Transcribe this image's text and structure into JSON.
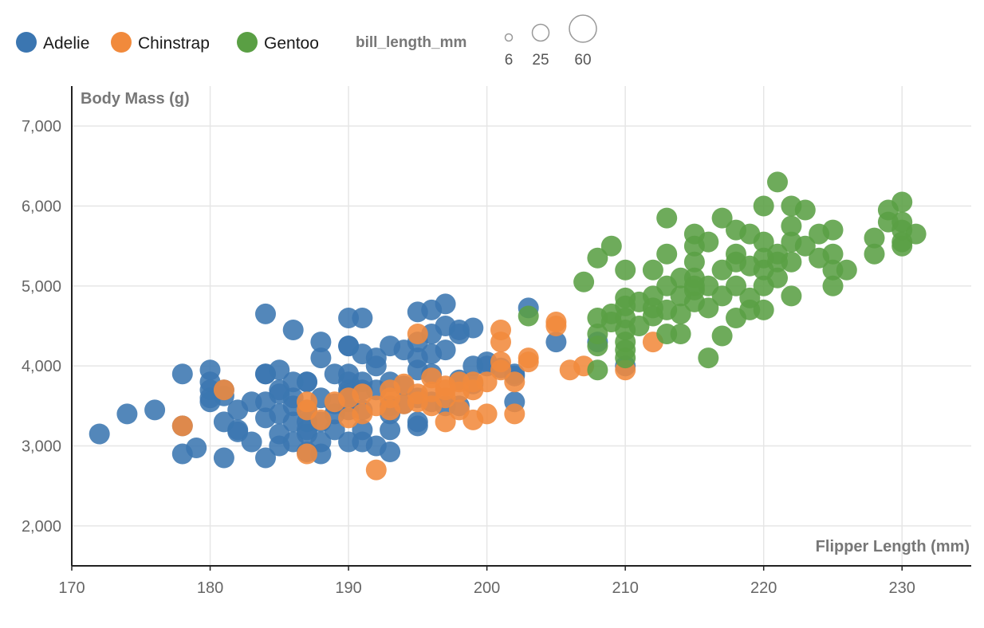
{
  "chart_data": {
    "type": "scatter",
    "title": "",
    "xlabel": "Flipper Length (mm)",
    "ylabel": "Body Mass (g)",
    "xlim": [
      170,
      235
    ],
    "ylim": [
      1500,
      7500
    ],
    "x_ticks": [
      170,
      180,
      190,
      200,
      210,
      220,
      230
    ],
    "x_tick_labels": [
      "170",
      "180",
      "190",
      "200",
      "210",
      "220",
      "230"
    ],
    "y_ticks": [
      2000,
      3000,
      4000,
      5000,
      6000,
      7000
    ],
    "y_tick_labels": [
      "2,000",
      "3,000",
      "4,000",
      "5,000",
      "6,000",
      "7,000"
    ],
    "grid": true,
    "legend_position": "top-left",
    "size_legend": {
      "title": "bill_length_mm",
      "values": [
        6,
        25,
        60
      ],
      "labels": [
        "6",
        "25",
        "60"
      ]
    },
    "series": [
      {
        "name": "Adelie",
        "color": "#3b76b1",
        "points": [
          [
            172,
            3150
          ],
          [
            174,
            3400
          ],
          [
            176,
            3450
          ],
          [
            178,
            3900
          ],
          [
            178,
            3250
          ],
          [
            178,
            2900
          ],
          [
            179,
            2975
          ],
          [
            180,
            3950
          ],
          [
            180,
            3800
          ],
          [
            180,
            3700
          ],
          [
            180,
            3550
          ],
          [
            180,
            3600
          ],
          [
            181,
            3700
          ],
          [
            181,
            3300
          ],
          [
            181,
            2850
          ],
          [
            181,
            3625
          ],
          [
            182,
            3175
          ],
          [
            182,
            3450
          ],
          [
            182,
            3200
          ],
          [
            183,
            3050
          ],
          [
            183,
            3550
          ],
          [
            184,
            4650
          ],
          [
            184,
            3900
          ],
          [
            184,
            3550
          ],
          [
            184,
            3350
          ],
          [
            184,
            2850
          ],
          [
            184,
            3900
          ],
          [
            185,
            3950
          ],
          [
            185,
            3700
          ],
          [
            185,
            3400
          ],
          [
            185,
            3000
          ],
          [
            185,
            3150
          ],
          [
            185,
            3650
          ],
          [
            186,
            4450
          ],
          [
            186,
            3800
          ],
          [
            186,
            3500
          ],
          [
            186,
            3050
          ],
          [
            186,
            3300
          ],
          [
            186,
            3600
          ],
          [
            187,
            3800
          ],
          [
            187,
            3450
          ],
          [
            187,
            3150
          ],
          [
            187,
            2925
          ],
          [
            187,
            3300
          ],
          [
            187,
            3800
          ],
          [
            187,
            3200
          ],
          [
            188,
            4300
          ],
          [
            188,
            4100
          ],
          [
            188,
            3600
          ],
          [
            188,
            2900
          ],
          [
            188,
            3050
          ],
          [
            188,
            3300
          ],
          [
            189,
            3900
          ],
          [
            189,
            3525
          ],
          [
            189,
            3200
          ],
          [
            189,
            3400
          ],
          [
            190,
            4600
          ],
          [
            190,
            4250
          ],
          [
            190,
            3900
          ],
          [
            190,
            3700
          ],
          [
            190,
            3450
          ],
          [
            190,
            3050
          ],
          [
            190,
            3800
          ],
          [
            190,
            3650
          ],
          [
            190,
            4250
          ],
          [
            190,
            3550
          ],
          [
            191,
            4600
          ],
          [
            191,
            4150
          ],
          [
            191,
            3700
          ],
          [
            191,
            3450
          ],
          [
            191,
            3200
          ],
          [
            191,
            3050
          ],
          [
            191,
            3800
          ],
          [
            192,
            4000
          ],
          [
            192,
            3700
          ],
          [
            192,
            3000
          ],
          [
            192,
            4100
          ],
          [
            193,
            4250
          ],
          [
            193,
            3800
          ],
          [
            193,
            3500
          ],
          [
            193,
            3200
          ],
          [
            193,
            2925
          ],
          [
            193,
            3400
          ],
          [
            194,
            4200
          ],
          [
            194,
            3750
          ],
          [
            194,
            3525
          ],
          [
            195,
            4675
          ],
          [
            195,
            4300
          ],
          [
            195,
            3950
          ],
          [
            195,
            3600
          ],
          [
            195,
            3300
          ],
          [
            195,
            3250
          ],
          [
            195,
            4100
          ],
          [
            196,
            4700
          ],
          [
            196,
            4400
          ],
          [
            196,
            4150
          ],
          [
            196,
            3550
          ],
          [
            196,
            3900
          ],
          [
            197,
            4775
          ],
          [
            197,
            4500
          ],
          [
            197,
            4200
          ],
          [
            197,
            3500
          ],
          [
            198,
            4450
          ],
          [
            198,
            3825
          ],
          [
            198,
            3500
          ],
          [
            198,
            4400
          ],
          [
            199,
            4475
          ],
          [
            199,
            4000
          ],
          [
            199,
            3775
          ],
          [
            200,
            4050
          ],
          [
            200,
            4000
          ],
          [
            201,
            3975
          ],
          [
            202,
            3900
          ],
          [
            202,
            3550
          ],
          [
            202,
            3875
          ],
          [
            203,
            4725
          ],
          [
            205,
            4300
          ],
          [
            208,
            4300
          ],
          [
            210,
            4000
          ]
        ]
      },
      {
        "name": "Chinstrap",
        "color": "#f18a3c",
        "points": [
          [
            178,
            3250
          ],
          [
            181,
            3700
          ],
          [
            187,
            2900
          ],
          [
            187,
            3450
          ],
          [
            187,
            3550
          ],
          [
            188,
            3325
          ],
          [
            189,
            3550
          ],
          [
            190,
            3600
          ],
          [
            190,
            3350
          ],
          [
            191,
            3400
          ],
          [
            191,
            3650
          ],
          [
            192,
            2700
          ],
          [
            192,
            3500
          ],
          [
            193,
            3600
          ],
          [
            193,
            3450
          ],
          [
            193,
            3700
          ],
          [
            194,
            3525
          ],
          [
            194,
            3775
          ],
          [
            195,
            3650
          ],
          [
            195,
            4400
          ],
          [
            195,
            3550
          ],
          [
            196,
            3500
          ],
          [
            196,
            3675
          ],
          [
            196,
            3850
          ],
          [
            197,
            3300
          ],
          [
            197,
            3600
          ],
          [
            197,
            3750
          ],
          [
            197,
            3700
          ],
          [
            198,
            3675
          ],
          [
            198,
            3800
          ],
          [
            198,
            3450
          ],
          [
            199,
            3325
          ],
          [
            199,
            3700
          ],
          [
            199,
            3800
          ],
          [
            200,
            3400
          ],
          [
            200,
            3800
          ],
          [
            201,
            4450
          ],
          [
            201,
            4300
          ],
          [
            201,
            4050
          ],
          [
            201,
            3950
          ],
          [
            202,
            3400
          ],
          [
            202,
            3800
          ],
          [
            203,
            4100
          ],
          [
            203,
            4050
          ],
          [
            205,
            4550
          ],
          [
            205,
            4500
          ],
          [
            206,
            3950
          ],
          [
            207,
            4000
          ],
          [
            210,
            3950
          ],
          [
            212,
            4300
          ]
        ]
      },
      {
        "name": "Gentoo",
        "color": "#5a9f44",
        "points": [
          [
            203,
            4625
          ],
          [
            207,
            5050
          ],
          [
            208,
            5350
          ],
          [
            208,
            4600
          ],
          [
            208,
            4250
          ],
          [
            208,
            3950
          ],
          [
            208,
            4400
          ],
          [
            209,
            5500
          ],
          [
            209,
            4650
          ],
          [
            209,
            4550
          ],
          [
            210,
            4850
          ],
          [
            210,
            4750
          ],
          [
            210,
            4600
          ],
          [
            210,
            4450
          ],
          [
            210,
            4300
          ],
          [
            210,
            4100
          ],
          [
            210,
            5200
          ],
          [
            210,
            4200
          ],
          [
            211,
            4800
          ],
          [
            211,
            4500
          ],
          [
            212,
            5200
          ],
          [
            212,
            4875
          ],
          [
            212,
            4625
          ],
          [
            212,
            4725
          ],
          [
            213,
            5850
          ],
          [
            213,
            5400
          ],
          [
            213,
            5000
          ],
          [
            213,
            4700
          ],
          [
            213,
            4400
          ],
          [
            214,
            5100
          ],
          [
            214,
            4875
          ],
          [
            214,
            4650
          ],
          [
            214,
            4400
          ],
          [
            215,
            5650
          ],
          [
            215,
            5500
          ],
          [
            215,
            5300
          ],
          [
            215,
            5100
          ],
          [
            215,
            5000
          ],
          [
            215,
            4950
          ],
          [
            215,
            4800
          ],
          [
            216,
            5550
          ],
          [
            216,
            5000
          ],
          [
            216,
            4725
          ],
          [
            216,
            4100
          ],
          [
            217,
            5850
          ],
          [
            217,
            5200
          ],
          [
            217,
            4875
          ],
          [
            217,
            4375
          ],
          [
            218,
            5700
          ],
          [
            218,
            5400
          ],
          [
            218,
            5300
          ],
          [
            218,
            5000
          ],
          [
            218,
            4600
          ],
          [
            219,
            5650
          ],
          [
            219,
            5250
          ],
          [
            219,
            4850
          ],
          [
            219,
            4700
          ],
          [
            220,
            6000
          ],
          [
            220,
            5550
          ],
          [
            220,
            5350
          ],
          [
            220,
            5200
          ],
          [
            220,
            5000
          ],
          [
            220,
            4700
          ],
          [
            221,
            6300
          ],
          [
            221,
            5400
          ],
          [
            221,
            5300
          ],
          [
            221,
            5100
          ],
          [
            222,
            6000
          ],
          [
            222,
            5750
          ],
          [
            222,
            5550
          ],
          [
            222,
            5300
          ],
          [
            222,
            4875
          ],
          [
            223,
            5950
          ],
          [
            223,
            5500
          ],
          [
            224,
            5650
          ],
          [
            224,
            5350
          ],
          [
            225,
            5700
          ],
          [
            225,
            5400
          ],
          [
            225,
            5200
          ],
          [
            225,
            5000
          ],
          [
            226,
            5200
          ],
          [
            228,
            5600
          ],
          [
            228,
            5400
          ],
          [
            229,
            5950
          ],
          [
            229,
            5800
          ],
          [
            230,
            6050
          ],
          [
            230,
            5800
          ],
          [
            230,
            5700
          ],
          [
            230,
            5550
          ],
          [
            230,
            5500
          ],
          [
            231,
            5650
          ]
        ]
      }
    ]
  }
}
